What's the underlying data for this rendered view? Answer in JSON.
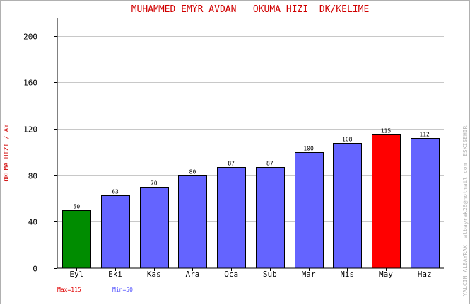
{
  "chart_data": {
    "type": "bar",
    "title": "MUHAMMED EMŸR AVDAN   OKUMA HIZI  DK/KELIME",
    "ylabel": "OKUMA HIZI / AY",
    "xlabel": "",
    "categories": [
      "Eyl",
      "Eki",
      "Kas",
      "Ara",
      "Oca",
      "Sub",
      "Mar",
      "Nis",
      "May",
      "Haz"
    ],
    "values": [
      50,
      63,
      70,
      80,
      87,
      87,
      100,
      108,
      115,
      112
    ],
    "value_labels": [
      "50",
      "63",
      "70",
      "80",
      "87",
      "87",
      "100",
      "108",
      "115",
      "112"
    ],
    "ylim": [
      0,
      215
    ],
    "yticks": [
      0,
      40,
      80,
      120,
      160,
      200
    ],
    "ytick_labels": [
      "0",
      "40",
      "80",
      "120",
      "160",
      "200"
    ],
    "grid": true,
    "legend": "bottom-left",
    "max_label": "Max=115",
    "min_label": "Min=50",
    "credit": "YALCIN ALBAYRAK  albayrak26@hotmail.com  ESKISEHIR",
    "colors": {
      "bar": "#6464ff",
      "max_bar": "#ff0000",
      "min_bar": "#008c00",
      "title": "#d00000",
      "ylabel": "#d00000",
      "max_text": "#e00000",
      "min_text": "#5050ff",
      "grid": "#c8c8c8",
      "credit": "#b4b4b4"
    }
  }
}
